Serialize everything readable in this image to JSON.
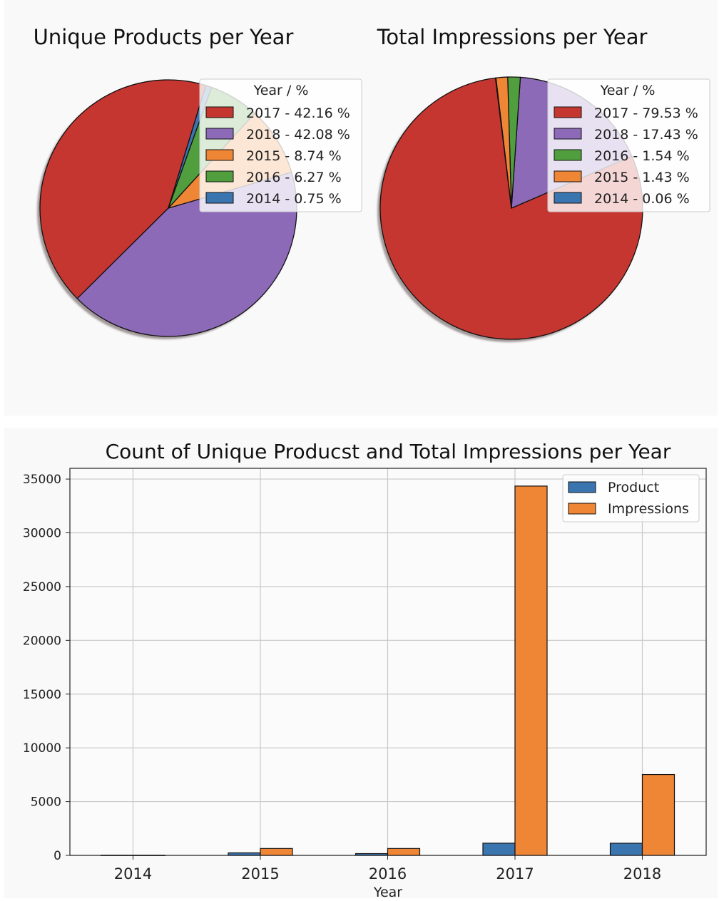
{
  "chart_data": [
    {
      "type": "pie",
      "title": "Unique Products per Year",
      "legend_title": "Year / %",
      "legend_placement": "upper-right",
      "slices": [
        {
          "label": "2017 - 42.16 %",
          "year": "2017",
          "value": 42.16,
          "color": "#c63631"
        },
        {
          "label": "2018 - 42.08 %",
          "year": "2018",
          "value": 42.08,
          "color": "#8d6ab8"
        },
        {
          "label": "2015 - 8.74 %",
          "year": "2015",
          "value": 8.74,
          "color": "#ef8636"
        },
        {
          "label": "2016 - 6.27 %",
          "year": "2016",
          "value": 6.27,
          "color": "#519e3e"
        },
        {
          "label": "2014 - 0.75 %",
          "year": "2014",
          "value": 0.75,
          "color": "#3b75af"
        }
      ],
      "shadow": true
    },
    {
      "type": "pie",
      "title": "Total Impressions per Year",
      "legend_title": "Year / %",
      "legend_placement": "upper-right",
      "slices": [
        {
          "label": "2017 - 79.53 %",
          "year": "2017",
          "value": 79.53,
          "color": "#c63631"
        },
        {
          "label": "2018 - 17.43 %",
          "year": "2018",
          "value": 17.43,
          "color": "#8d6ab8"
        },
        {
          "label": "2016 - 1.54 %",
          "year": "2016",
          "value": 1.54,
          "color": "#519e3e"
        },
        {
          "label": "2015 - 1.43 %",
          "year": "2015",
          "value": 1.43,
          "color": "#ef8636"
        },
        {
          "label": "2014 - 0.06 %",
          "year": "2014",
          "value": 0.06,
          "color": "#3b75af"
        }
      ],
      "shadow": true
    },
    {
      "type": "bar",
      "title": "Count of Unique Producst and Total Impressions per Year",
      "xlabel": "Year",
      "ylabel": "",
      "categories": [
        "2014",
        "2015",
        "2016",
        "2017",
        "2018"
      ],
      "series": [
        {
          "name": "Product",
          "color": "#3b75af",
          "values": [
            20,
            235,
            165,
            1135,
            1130
          ]
        },
        {
          "name": "Impressions",
          "color": "#ef8636",
          "values": [
            15,
            640,
            640,
            34350,
            7520
          ]
        }
      ],
      "ylim": [
        0,
        36000
      ],
      "yticks": [
        0,
        5000,
        10000,
        15000,
        20000,
        25000,
        30000,
        35000
      ],
      "grid": true,
      "legend_placement": "upper-right"
    }
  ]
}
